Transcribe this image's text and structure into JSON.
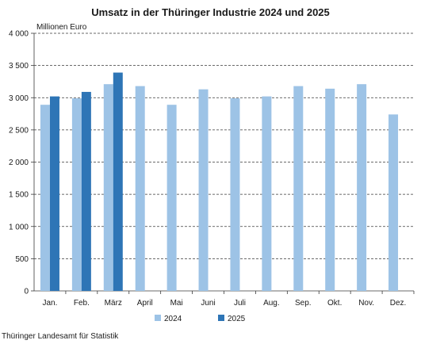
{
  "chart_data": {
    "type": "bar",
    "title": "Umsatz in der Thüringer Industrie 2024 und 2025",
    "ylabel": "Millionen Euro",
    "xlabel": "",
    "ylim": [
      0,
      4000
    ],
    "yticks": [
      0,
      500,
      1000,
      1500,
      2000,
      2500,
      3000,
      3500,
      4000
    ],
    "ytick_labels": [
      "0",
      "500",
      "1 000",
      "1 500",
      "2 000",
      "2 500",
      "3 000",
      "3 500",
      "4 000"
    ],
    "grid": "horizontal dashed",
    "legend": "bottom",
    "categories": [
      "Jan.",
      "Feb.",
      "März",
      "April",
      "Mai",
      "Juni",
      "Juli",
      "Aug.",
      "Sep.",
      "Okt.",
      "Nov.",
      "Dez."
    ],
    "series": [
      {
        "name": "2024",
        "color": "#9dc3e6",
        "values": [
          2890,
          2990,
          3210,
          3180,
          2890,
          3130,
          2990,
          3020,
          3180,
          3140,
          3210,
          2740
        ]
      },
      {
        "name": "2025",
        "color": "#2e75b6",
        "values": [
          3020,
          3090,
          3390,
          null,
          null,
          null,
          null,
          null,
          null,
          null,
          null,
          null
        ]
      }
    ]
  },
  "source": "Thüringer Landesamt für Statistik"
}
